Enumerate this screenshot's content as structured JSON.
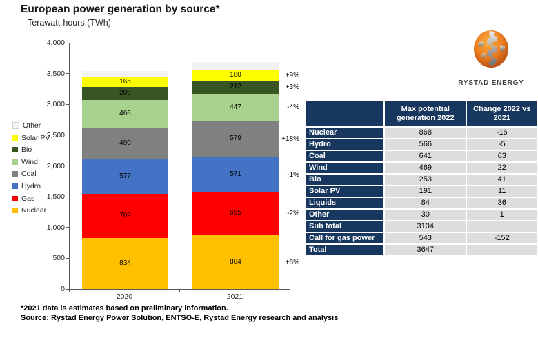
{
  "title": "European power generation by source*",
  "subtitle": "Terawatt-hours (TWh)",
  "chart_data": {
    "type": "bar",
    "variant": "stacked",
    "title": "European power generation by source*",
    "ylabel": "Terawatt-hours (TWh)",
    "xlabel": "",
    "categories": [
      "2020",
      "2021"
    ],
    "ylim": [
      0,
      4000
    ],
    "ytick_step": 500,
    "grid": false,
    "legend_position": "left",
    "legend_order_top_to_bottom": [
      "Other",
      "Solar PV",
      "Bio",
      "Wind",
      "Coal",
      "Hydro",
      "Gas",
      "Nuclear"
    ],
    "series": [
      {
        "name": "Nuclear",
        "color": "#FFC000",
        "values": [
          834,
          884
        ],
        "change_2021_vs_2020": "+6%",
        "label_shown": true
      },
      {
        "name": "Gas",
        "color": "#FF0000",
        "values": [
          709,
          695
        ],
        "change_2021_vs_2020": "-2%",
        "label_shown": true
      },
      {
        "name": "Hydro",
        "color": "#4472C4",
        "values": [
          577,
          571
        ],
        "change_2021_vs_2020": "-1%",
        "label_shown": true
      },
      {
        "name": "Coal",
        "color": "#808080",
        "values": [
          490,
          579
        ],
        "change_2021_vs_2020": "+18%",
        "label_shown": true
      },
      {
        "name": "Wind",
        "color": "#A9D18E",
        "values": [
          466,
          447
        ],
        "change_2021_vs_2020": "-4%",
        "label_shown": true
      },
      {
        "name": "Bio",
        "color": "#375623",
        "values": [
          206,
          212
        ],
        "change_2021_vs_2020": "+3%",
        "label_shown": true
      },
      {
        "name": "Solar PV",
        "color": "#FFFF00",
        "values": [
          165,
          180
        ],
        "change_2021_vs_2020": "+9%",
        "label_shown": true
      },
      {
        "name": "Other",
        "color": "#F2F2F2",
        "values": [
          100,
          120
        ],
        "change_2021_vs_2020": "",
        "label_shown": false
      }
    ]
  },
  "table": {
    "header_bg": "#17375E",
    "cell_bg": "#DDDDDD",
    "columns": [
      "",
      "Max potential generation 2022",
      "Change 2022 vs 2021"
    ],
    "rows": [
      {
        "label": "Nuclear",
        "max_potential_2022": "868",
        "change_2022_vs_2021": "-16"
      },
      {
        "label": "Hydro",
        "max_potential_2022": "566",
        "change_2022_vs_2021": "-5"
      },
      {
        "label": "Coal",
        "max_potential_2022": "641",
        "change_2022_vs_2021": "63"
      },
      {
        "label": "Wind",
        "max_potential_2022": "469",
        "change_2022_vs_2021": "22"
      },
      {
        "label": "Bio",
        "max_potential_2022": "253",
        "change_2022_vs_2021": "41"
      },
      {
        "label": "Solar PV",
        "max_potential_2022": "191",
        "change_2022_vs_2021": "11"
      },
      {
        "label": "Liquids",
        "max_potential_2022": "84",
        "change_2022_vs_2021": "36"
      },
      {
        "label": "Other",
        "max_potential_2022": "30",
        "change_2022_vs_2021": "1"
      },
      {
        "label": "Sub total",
        "max_potential_2022": "3104",
        "change_2022_vs_2021": ""
      },
      {
        "label": "Call for gas power",
        "max_potential_2022": "543",
        "change_2022_vs_2021": "-152"
      },
      {
        "label": "Total",
        "max_potential_2022": "3647",
        "change_2022_vs_2021": ""
      }
    ]
  },
  "logo": {
    "text": "RYSTAD ENERGY"
  },
  "footnote": {
    "line1": "*2021 data is estimates based on preliminary information.",
    "line2": "Source: Rystad Energy Power Solution,  ENTSO-E, Rystad Energy research and analysis"
  }
}
